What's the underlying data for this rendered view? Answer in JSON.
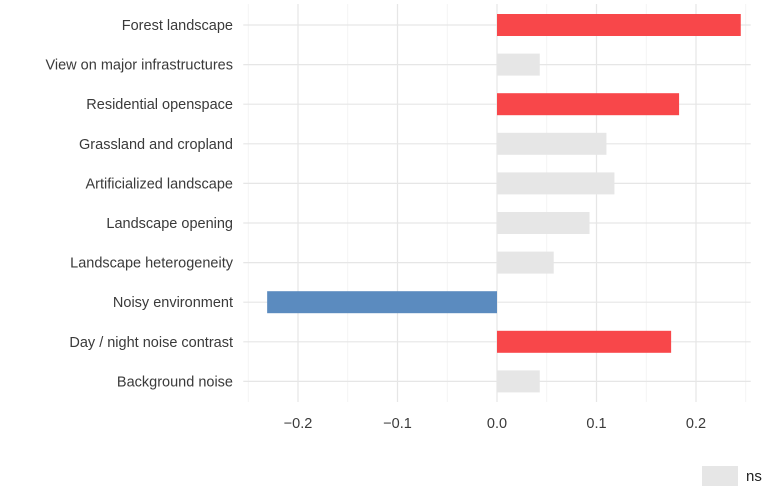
{
  "chart_data": {
    "type": "bar",
    "orientation": "horizontal",
    "title": "",
    "xlabel": "",
    "ylabel": "",
    "xlim": [
      -0.255,
      0.255
    ],
    "x_ticks": [
      -0.2,
      -0.1,
      0.0,
      0.1,
      0.2
    ],
    "x_tick_labels": [
      "−0.2",
      "−0.1",
      "0.0",
      "0.1",
      "0.2"
    ],
    "grid": true,
    "legend_position": "bottom-right",
    "categories": [
      "Forest landscape",
      "View on major infrastructures",
      "Residential openspace",
      "Grassland and cropland",
      "Artificialized landscape",
      "Landscape opening",
      "Landscape heterogeneity",
      "Noisy environment",
      "Day / night noise contrast",
      "Background noise"
    ],
    "values": [
      0.245,
      0.043,
      0.183,
      0.11,
      0.118,
      0.093,
      0.057,
      -0.231,
      0.175,
      0.043
    ],
    "status": [
      "pos",
      "ns",
      "pos",
      "ns",
      "ns",
      "ns",
      "ns",
      "neg",
      "pos",
      "ns"
    ],
    "colors": {
      "pos": "#f8474a",
      "neg": "#5b8bbf",
      "ns": "#e6e6e6"
    },
    "legend": [
      {
        "key": "ns",
        "label": "ns"
      }
    ]
  }
}
